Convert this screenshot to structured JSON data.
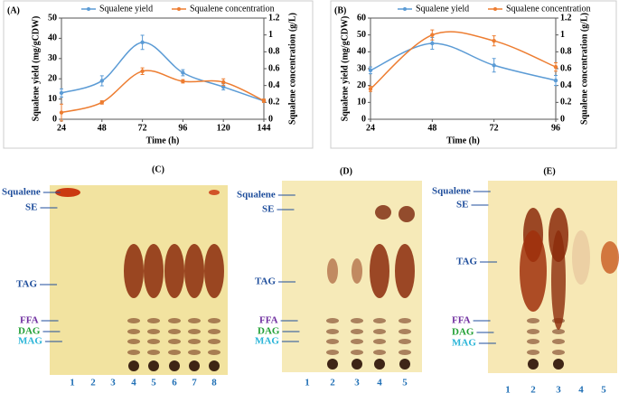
{
  "chart_data": [
    {
      "type": "line",
      "panel_label": "(A)",
      "x": [
        24,
        48,
        72,
        96,
        120,
        144
      ],
      "xlim": [
        24,
        144
      ],
      "xticks": [
        24,
        48,
        72,
        96,
        120,
        144
      ],
      "x_label": "Time (h)",
      "y_label": "Squalene yield (mg/gCDW)",
      "y2_label": "Squalene concentration (g/L)",
      "ylim": [
        0,
        50
      ],
      "yticks": [
        0,
        10,
        20,
        30,
        40,
        50
      ],
      "y2lim": [
        0,
        1.2
      ],
      "y2ticks": [
        0,
        0.2,
        0.4,
        0.6,
        0.8,
        1,
        1.2
      ],
      "series": [
        {
          "name": "Squalene yield",
          "color": "#5b9bd5",
          "values": [
            13,
            19,
            38,
            23,
            16,
            9
          ],
          "errors": [
            2,
            2.5,
            3.5,
            1.5,
            1.5,
            0.5
          ]
        },
        {
          "name": "Squalene concentration",
          "color": "#ed7d31",
          "axis": "y2",
          "values": [
            0.08,
            0.2,
            0.57,
            0.45,
            0.44,
            0.22
          ],
          "errors": [
            0.1,
            0.02,
            0.04,
            0.02,
            0.04,
            0.02
          ]
        }
      ]
    },
    {
      "type": "line",
      "panel_label": "(B)",
      "x": [
        24,
        48,
        72,
        96
      ],
      "xlim": [
        24,
        96
      ],
      "xticks": [
        24,
        48,
        72,
        96
      ],
      "x_label": "Time (h)",
      "y_label": "Squalene yield (mg/gCDW)",
      "y2_label": "Squalene concentration (g/L)",
      "ylim": [
        0,
        60
      ],
      "yticks": [
        0,
        10,
        20,
        30,
        40,
        50,
        60
      ],
      "y2lim": [
        0,
        1.2
      ],
      "y2ticks": [
        0,
        0.2,
        0.4,
        0.6,
        0.8,
        1,
        1.2
      ],
      "series": [
        {
          "name": "Squalene yield",
          "color": "#5b9bd5",
          "values": [
            29,
            45,
            32,
            23
          ],
          "errors": [
            2,
            3.5,
            4,
            3
          ]
        },
        {
          "name": "Squalene concentration",
          "color": "#ed7d31",
          "axis": "y2",
          "values": [
            0.36,
            1.0,
            0.93,
            0.62
          ],
          "errors": [
            0.03,
            0.06,
            0.06,
            0.05
          ]
        }
      ]
    }
  ],
  "tlc_panels": [
    {
      "label": "(C)",
      "bands": [
        "Squalene",
        "SE",
        "TAG",
        "FFA",
        "DAG",
        "MAG"
      ],
      "lanes": [
        "1",
        "2",
        "3",
        "4",
        "5",
        "6",
        "7",
        "8"
      ]
    },
    {
      "label": "(D)",
      "bands": [
        "Squalene",
        "SE",
        "TAG",
        "FFA",
        "DAG",
        "MAG"
      ],
      "lanes": [
        "1",
        "2",
        "3",
        "4",
        "5"
      ]
    },
    {
      "label": "(E)",
      "bands": [
        "Squalene",
        "SE",
        "TAG",
        "FFA",
        "DAG",
        "MAG"
      ],
      "lanes": [
        "1",
        "2",
        "3",
        "4",
        "5"
      ]
    }
  ]
}
